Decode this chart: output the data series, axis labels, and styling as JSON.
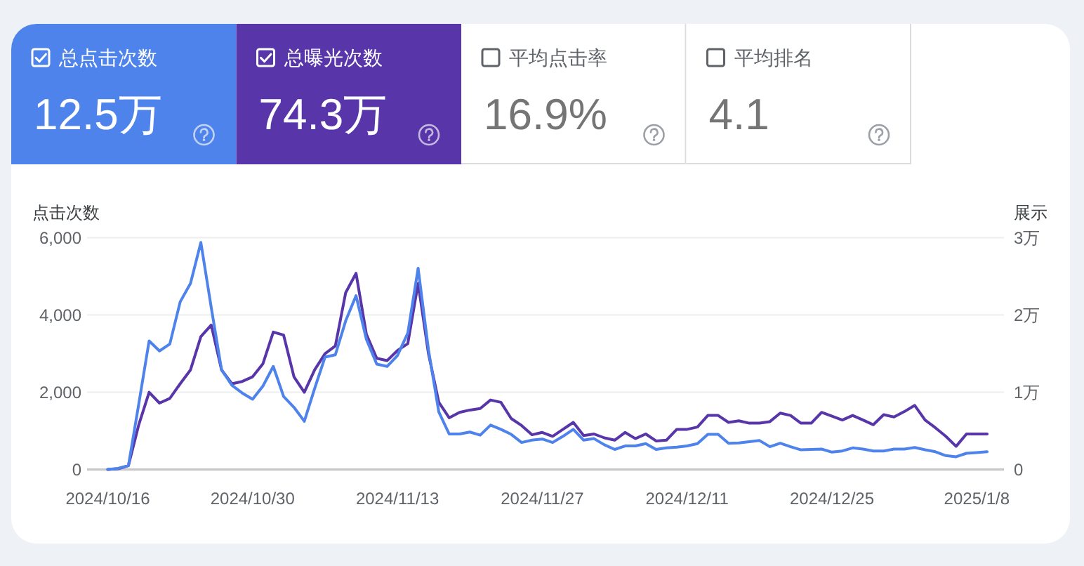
{
  "chart_data": [
    {
      "type": "other",
      "categories": [
        "总点击次数",
        "总曝光次数",
        "平均点击率",
        "平均排名"
      ],
      "value_labels": [
        "12.5万",
        "74.3万",
        "16.9%",
        "4.1"
      ],
      "colors": [
        "#4f83ec",
        "#5836a9",
        "#ffffff",
        "#ffffff"
      ]
    },
    {
      "type": "line",
      "ylabel": "点击次数",
      "y2label": "展示",
      "grid": "y",
      "line_style": "solid",
      "x": [
        "2024-10-16",
        "2024-10-17",
        "2024-10-18",
        "2024-10-19",
        "2024-10-20",
        "2024-10-21",
        "2024-10-22",
        "2024-10-23",
        "2024-10-24",
        "2024-10-25",
        "2024-10-26",
        "2024-10-27",
        "2024-10-28",
        "2024-10-29",
        "2024-10-30",
        "2024-10-31",
        "2024-11-01",
        "2024-11-02",
        "2024-11-03",
        "2024-11-04",
        "2024-11-05",
        "2024-11-06",
        "2024-11-07",
        "2024-11-08",
        "2024-11-09",
        "2024-11-10",
        "2024-11-11",
        "2024-11-12",
        "2024-11-13",
        "2024-11-14",
        "2024-11-15",
        "2024-11-16",
        "2024-11-17",
        "2024-11-18",
        "2024-11-19",
        "2024-11-20",
        "2024-11-21",
        "2024-11-22",
        "2024-11-23",
        "2024-11-24",
        "2024-11-25",
        "2024-11-26",
        "2024-11-27",
        "2024-11-28",
        "2024-11-29",
        "2024-11-30",
        "2024-12-01",
        "2024-12-02",
        "2024-12-03",
        "2024-12-04",
        "2024-12-05",
        "2024-12-06",
        "2024-12-07",
        "2024-12-08",
        "2024-12-09",
        "2024-12-10",
        "2024-12-11",
        "2024-12-12",
        "2024-12-13",
        "2024-12-14",
        "2024-12-15",
        "2024-12-16",
        "2024-12-17",
        "2024-12-18",
        "2024-12-19",
        "2024-12-20",
        "2024-12-21",
        "2024-12-22",
        "2024-12-23",
        "2024-12-24",
        "2024-12-25",
        "2024-12-26",
        "2024-12-27",
        "2024-12-28",
        "2024-12-29",
        "2024-12-30",
        "2024-12-31",
        "2025-01-01",
        "2025-01-02",
        "2025-01-03",
        "2025-01-04",
        "2025-01-05",
        "2025-01-06",
        "2025-01-07",
        "2025-01-08",
        "2025-01-09"
      ],
      "xlim": [
        "2024-10-14",
        "2025-01-10T15:00"
      ],
      "xticks": [
        {
          "value": "2024-10-16",
          "label": "2024/10/16"
        },
        {
          "value": "2024-10-30",
          "label": "2024/10/30"
        },
        {
          "value": "2024-11-13",
          "label": "2024/11/13"
        },
        {
          "value": "2024-11-27",
          "label": "2024/11/27"
        },
        {
          "value": "2024-12-11",
          "label": "2024/12/11"
        },
        {
          "value": "2024-12-25",
          "label": "2024/12/25"
        },
        {
          "value": "2025-01-08",
          "label": "2025/1/8"
        }
      ],
      "ylim": [
        0,
        6000
      ],
      "yticks": [
        0,
        {
          "value": 2000,
          "label": "2,000"
        },
        {
          "value": 4000,
          "label": "4,000"
        },
        {
          "value": 6000,
          "label": "6,000"
        }
      ],
      "y2lim": [
        0,
        3
      ],
      "y2ticks": [
        0,
        {
          "value": 1,
          "label": "1万"
        },
        {
          "value": 2,
          "label": "2万"
        },
        {
          "value": 3,
          "label": "3万"
        }
      ],
      "series": [
        {
          "color": "#4f83ec",
          "values": [
            0,
            30,
            100,
            1700,
            3330,
            3070,
            3250,
            4340,
            4820,
            5880,
            4200,
            2580,
            2180,
            1980,
            1820,
            2160,
            2670,
            1890,
            1610,
            1250,
            2100,
            2910,
            2970,
            3850,
            4500,
            3370,
            2730,
            2670,
            2950,
            3530,
            5210,
            3100,
            1490,
            920,
            920,
            970,
            890,
            1150,
            1040,
            910,
            700,
            760,
            790,
            700,
            860,
            1040,
            760,
            800,
            640,
            520,
            610,
            610,
            670,
            520,
            560,
            580,
            610,
            670,
            910,
            910,
            680,
            690,
            720,
            750,
            590,
            680,
            590,
            510,
            520,
            530,
            450,
            480,
            560,
            530,
            480,
            480,
            530,
            530,
            570,
            510,
            460,
            360,
            330,
            420,
            440,
            460
          ]
        },
        {
          "color": "#5836a9",
          "axis": "y2",
          "values": [
            0,
            0.01,
            0.05,
            0.58,
            1.0,
            0.86,
            0.92,
            1.11,
            1.29,
            1.72,
            1.87,
            1.29,
            1.11,
            1.14,
            1.2,
            1.37,
            1.78,
            1.74,
            1.2,
            1.0,
            1.29,
            1.5,
            1.6,
            2.29,
            2.54,
            1.75,
            1.44,
            1.41,
            1.54,
            1.63,
            2.41,
            1.5,
            0.87,
            0.67,
            0.74,
            0.77,
            0.79,
            0.9,
            0.87,
            0.66,
            0.57,
            0.45,
            0.48,
            0.43,
            0.52,
            0.61,
            0.44,
            0.46,
            0.41,
            0.38,
            0.48,
            0.4,
            0.46,
            0.37,
            0.38,
            0.52,
            0.52,
            0.55,
            0.7,
            0.7,
            0.61,
            0.63,
            0.6,
            0.6,
            0.62,
            0.73,
            0.7,
            0.6,
            0.6,
            0.74,
            0.69,
            0.64,
            0.7,
            0.64,
            0.58,
            0.71,
            0.68,
            0.75,
            0.83,
            0.64,
            0.54,
            0.43,
            0.3,
            0.46,
            0.46,
            0.46
          ]
        }
      ]
    }
  ]
}
